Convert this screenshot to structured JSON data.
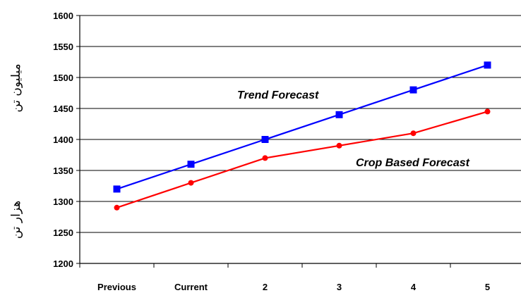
{
  "chart_data": {
    "type": "line",
    "categories": [
      "Previous",
      "Current",
      "2",
      "3",
      "4",
      "5"
    ],
    "ylim": [
      1200,
      1600
    ],
    "yticks": [
      1200,
      1250,
      1300,
      1350,
      1400,
      1450,
      1500,
      1550,
      1600
    ],
    "grid": true,
    "ylabel_lines": [
      "میلیون تن",
      "هزار تن"
    ],
    "series": [
      {
        "name": "Trend Forecast",
        "values": [
          1320,
          1360,
          1400,
          1440,
          1480,
          1520
        ],
        "color": "#0000ff",
        "marker": "square"
      },
      {
        "name": "Crop Based Forecast",
        "values": [
          1290,
          1330,
          1370,
          1390,
          1410,
          1445
        ],
        "color": "#ff0000",
        "marker": "circle"
      }
    ]
  }
}
